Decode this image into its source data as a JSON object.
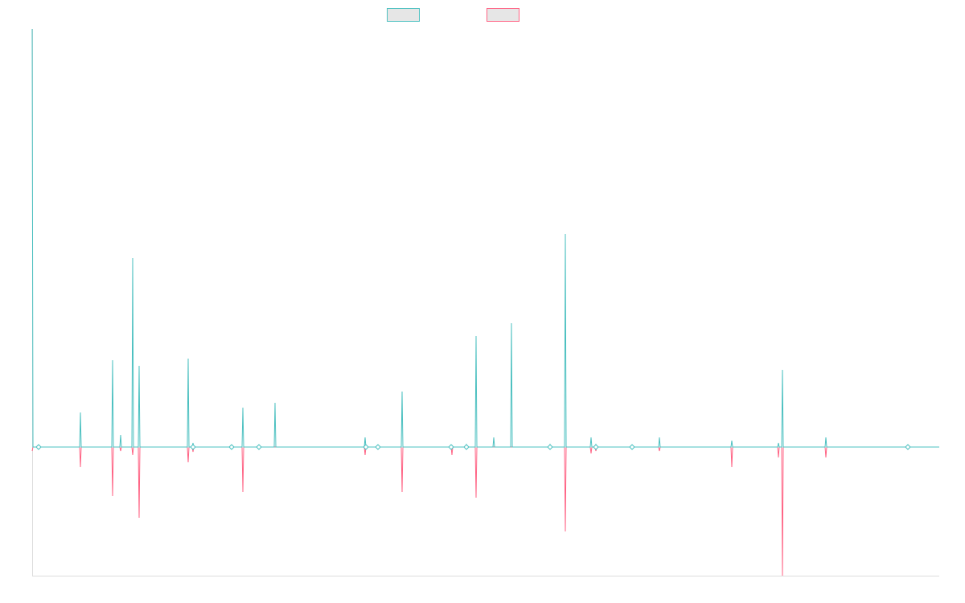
{
  "chart_data": {
    "type": "line",
    "title": "",
    "xlabel": "",
    "ylabel": "",
    "grid": false,
    "legend": "top-center",
    "xlim": [
      0,
      1128
    ],
    "ylim": [
      -160,
      520
    ],
    "series": [
      {
        "color": "#4bc0c0",
        "fill": "rgba(75,192,192,0.2)",
        "points": [
          [
            0,
            520
          ],
          [
            1,
            0
          ],
          [
            7,
            0
          ],
          [
            8,
            0
          ],
          [
            59,
            0
          ],
          [
            60,
            43
          ],
          [
            61,
            0
          ],
          [
            99,
            0
          ],
          [
            100,
            108
          ],
          [
            101,
            0
          ],
          [
            109,
            0
          ],
          [
            110,
            15
          ],
          [
            111,
            0
          ],
          [
            124,
            0
          ],
          [
            125,
            235
          ],
          [
            126,
            0
          ],
          [
            132,
            0
          ],
          [
            133,
            101
          ],
          [
            134,
            0
          ],
          [
            193,
            0
          ],
          [
            194,
            110
          ],
          [
            195,
            0
          ],
          [
            199,
            0
          ],
          [
            200,
            5
          ],
          [
            201,
            0
          ],
          [
            247,
            0
          ],
          [
            248,
            1
          ],
          [
            249,
            0
          ],
          [
            261,
            0
          ],
          [
            262,
            49
          ],
          [
            263,
            0
          ],
          [
            281,
            0
          ],
          [
            282,
            1
          ],
          [
            283,
            0
          ],
          [
            301,
            0
          ],
          [
            302,
            55
          ],
          [
            303,
            0
          ],
          [
            413,
            0
          ],
          [
            414,
            12
          ],
          [
            415,
            0
          ],
          [
            429,
            0
          ],
          [
            430,
            1
          ],
          [
            431,
            0
          ],
          [
            459,
            0
          ],
          [
            460,
            69
          ],
          [
            461,
            0
          ],
          [
            521,
            0
          ],
          [
            522,
            2
          ],
          [
            523,
            0
          ],
          [
            539,
            0
          ],
          [
            540,
            3
          ],
          [
            541,
            0
          ],
          [
            551,
            0
          ],
          [
            552,
            138
          ],
          [
            553,
            0
          ],
          [
            573,
            0
          ],
          [
            574,
            12
          ],
          [
            575,
            0
          ],
          [
            595,
            0
          ],
          [
            596,
            154
          ],
          [
            597,
            0
          ],
          [
            643,
            0
          ],
          [
            644,
            3
          ],
          [
            645,
            0
          ],
          [
            662,
            0
          ],
          [
            663,
            265
          ],
          [
            664,
            0
          ],
          [
            694,
            0
          ],
          [
            695,
            12
          ],
          [
            696,
            0
          ],
          [
            700,
            0
          ],
          [
            701,
            3
          ],
          [
            702,
            0
          ],
          [
            745,
            0
          ],
          [
            746,
            2
          ],
          [
            747,
            0
          ],
          [
            779,
            0
          ],
          [
            780,
            12
          ],
          [
            781,
            0
          ],
          [
            869,
            0
          ],
          [
            870,
            8
          ],
          [
            871,
            0
          ],
          [
            927,
            0
          ],
          [
            928,
            5
          ],
          [
            929,
            0
          ],
          [
            932,
            0
          ],
          [
            933,
            96
          ],
          [
            934,
            0
          ],
          [
            986,
            0
          ],
          [
            987,
            12
          ],
          [
            988,
            0
          ],
          [
            1088,
            0
          ],
          [
            1089,
            2
          ],
          [
            1090,
            0
          ],
          [
            1128,
            0
          ]
        ]
      },
      {
        "color": "#ff6384",
        "fill": "rgba(255,99,132,0.2)",
        "points": [
          [
            0,
            -5
          ],
          [
            1,
            0
          ],
          [
            7,
            0
          ],
          [
            8,
            -1
          ],
          [
            9,
            0
          ],
          [
            59,
            0
          ],
          [
            60,
            -25
          ],
          [
            61,
            0
          ],
          [
            99,
            0
          ],
          [
            100,
            -61
          ],
          [
            101,
            0
          ],
          [
            109,
            0
          ],
          [
            110,
            -5
          ],
          [
            111,
            0
          ],
          [
            124,
            0
          ],
          [
            125,
            -10
          ],
          [
            126,
            0
          ],
          [
            132,
            0
          ],
          [
            133,
            -88
          ],
          [
            134,
            0
          ],
          [
            193,
            0
          ],
          [
            194,
            -19
          ],
          [
            195,
            0
          ],
          [
            199,
            0
          ],
          [
            200,
            -6
          ],
          [
            201,
            0
          ],
          [
            247,
            0
          ],
          [
            248,
            -1
          ],
          [
            249,
            0
          ],
          [
            261,
            0
          ],
          [
            262,
            -56
          ],
          [
            263,
            0
          ],
          [
            281,
            0
          ],
          [
            282,
            -1
          ],
          [
            283,
            0
          ],
          [
            413,
            0
          ],
          [
            414,
            -10
          ],
          [
            415,
            0
          ],
          [
            429,
            0
          ],
          [
            430,
            -2
          ],
          [
            431,
            0
          ],
          [
            459,
            0
          ],
          [
            460,
            -56
          ],
          [
            461,
            0
          ],
          [
            521,
            0
          ],
          [
            522,
            -10
          ],
          [
            523,
            0
          ],
          [
            551,
            0
          ],
          [
            552,
            -63
          ],
          [
            553,
            0
          ],
          [
            662,
            0
          ],
          [
            663,
            -105
          ],
          [
            664,
            0
          ],
          [
            694,
            0
          ],
          [
            695,
            -8
          ],
          [
            696,
            0
          ],
          [
            700,
            0
          ],
          [
            701,
            -5
          ],
          [
            702,
            0
          ],
          [
            779,
            0
          ],
          [
            780,
            -5
          ],
          [
            781,
            0
          ],
          [
            869,
            0
          ],
          [
            870,
            -25
          ],
          [
            871,
            0
          ],
          [
            927,
            0
          ],
          [
            928,
            -13
          ],
          [
            929,
            0
          ],
          [
            932,
            0
          ],
          [
            933,
            -160
          ],
          [
            934,
            0
          ],
          [
            986,
            0
          ],
          [
            987,
            -13
          ],
          [
            988,
            0
          ],
          [
            1088,
            0
          ],
          [
            1089,
            -2
          ],
          [
            1090,
            0
          ],
          [
            1128,
            0
          ]
        ]
      }
    ],
    "markers": [
      8,
      200,
      248,
      282,
      415,
      430,
      521,
      540,
      644,
      701,
      746,
      1089
    ],
    "axis_color": "#dddddd",
    "legend_fill": "#e6e6e6"
  }
}
